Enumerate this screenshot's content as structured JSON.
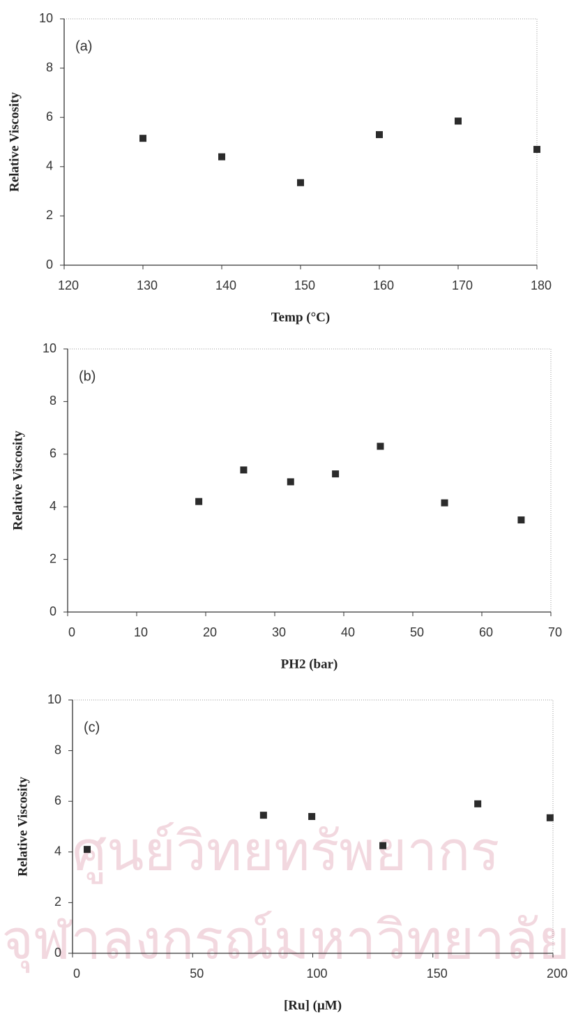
{
  "chart_data": [
    {
      "type": "scatter",
      "annotation": "(a)",
      "x_label": "Temp (°C)",
      "y_label": "Relative Viscosity",
      "series": [
        {
          "color": "#2b2b2b",
          "x": [
            130,
            140,
            150,
            160,
            170,
            180
          ],
          "values": [
            5.15,
            4.4,
            3.35,
            5.3,
            5.85,
            4.7
          ]
        }
      ],
      "xlim": [
        120,
        180
      ],
      "xticks": [
        120,
        130,
        140,
        150,
        160,
        170,
        180
      ],
      "ylim": [
        0,
        10
      ],
      "yticks": [
        0,
        2,
        4,
        6,
        8,
        10
      ]
    },
    {
      "type": "scatter",
      "annotation": "(b)",
      "x_label": "PH2 (bar)",
      "y_label": "Relative Viscosity",
      "series": [
        {
          "color": "#2b2b2b",
          "x": [
            19,
            25.5,
            32.3,
            38.8,
            45.3,
            54.6,
            65.7
          ],
          "values": [
            4.2,
            5.4,
            4.95,
            5.25,
            6.3,
            4.15,
            3.5
          ]
        }
      ],
      "xlim": [
        0,
        70
      ],
      "xticks": [
        0,
        10,
        20,
        30,
        40,
        50,
        60,
        70
      ],
      "ylim": [
        0,
        10
      ],
      "yticks": [
        0,
        2,
        4,
        6,
        8,
        10
      ]
    },
    {
      "type": "scatter",
      "annotation": "(c)",
      "x_label": "[Ru] (μM)",
      "y_label": "Relative Viscosity",
      "series": [
        {
          "color": "#2b2b2b",
          "x": [
            6.1,
            79.5,
            99.6,
            129.2,
            168.7,
            198.8
          ],
          "values": [
            4.1,
            5.45,
            5.4,
            4.25,
            5.9,
            5.35
          ]
        }
      ],
      "xlim": [
        0,
        200
      ],
      "xticks": [
        0,
        50,
        100,
        150,
        200
      ],
      "ylim": [
        0,
        10
      ],
      "yticks": [
        0,
        2,
        4,
        6,
        8,
        10
      ]
    }
  ],
  "watermark": [
    "ศูนย์วิทยทรัพยากร",
    "จุฬาลงกรณ์มหาวิทยาลัย"
  ]
}
